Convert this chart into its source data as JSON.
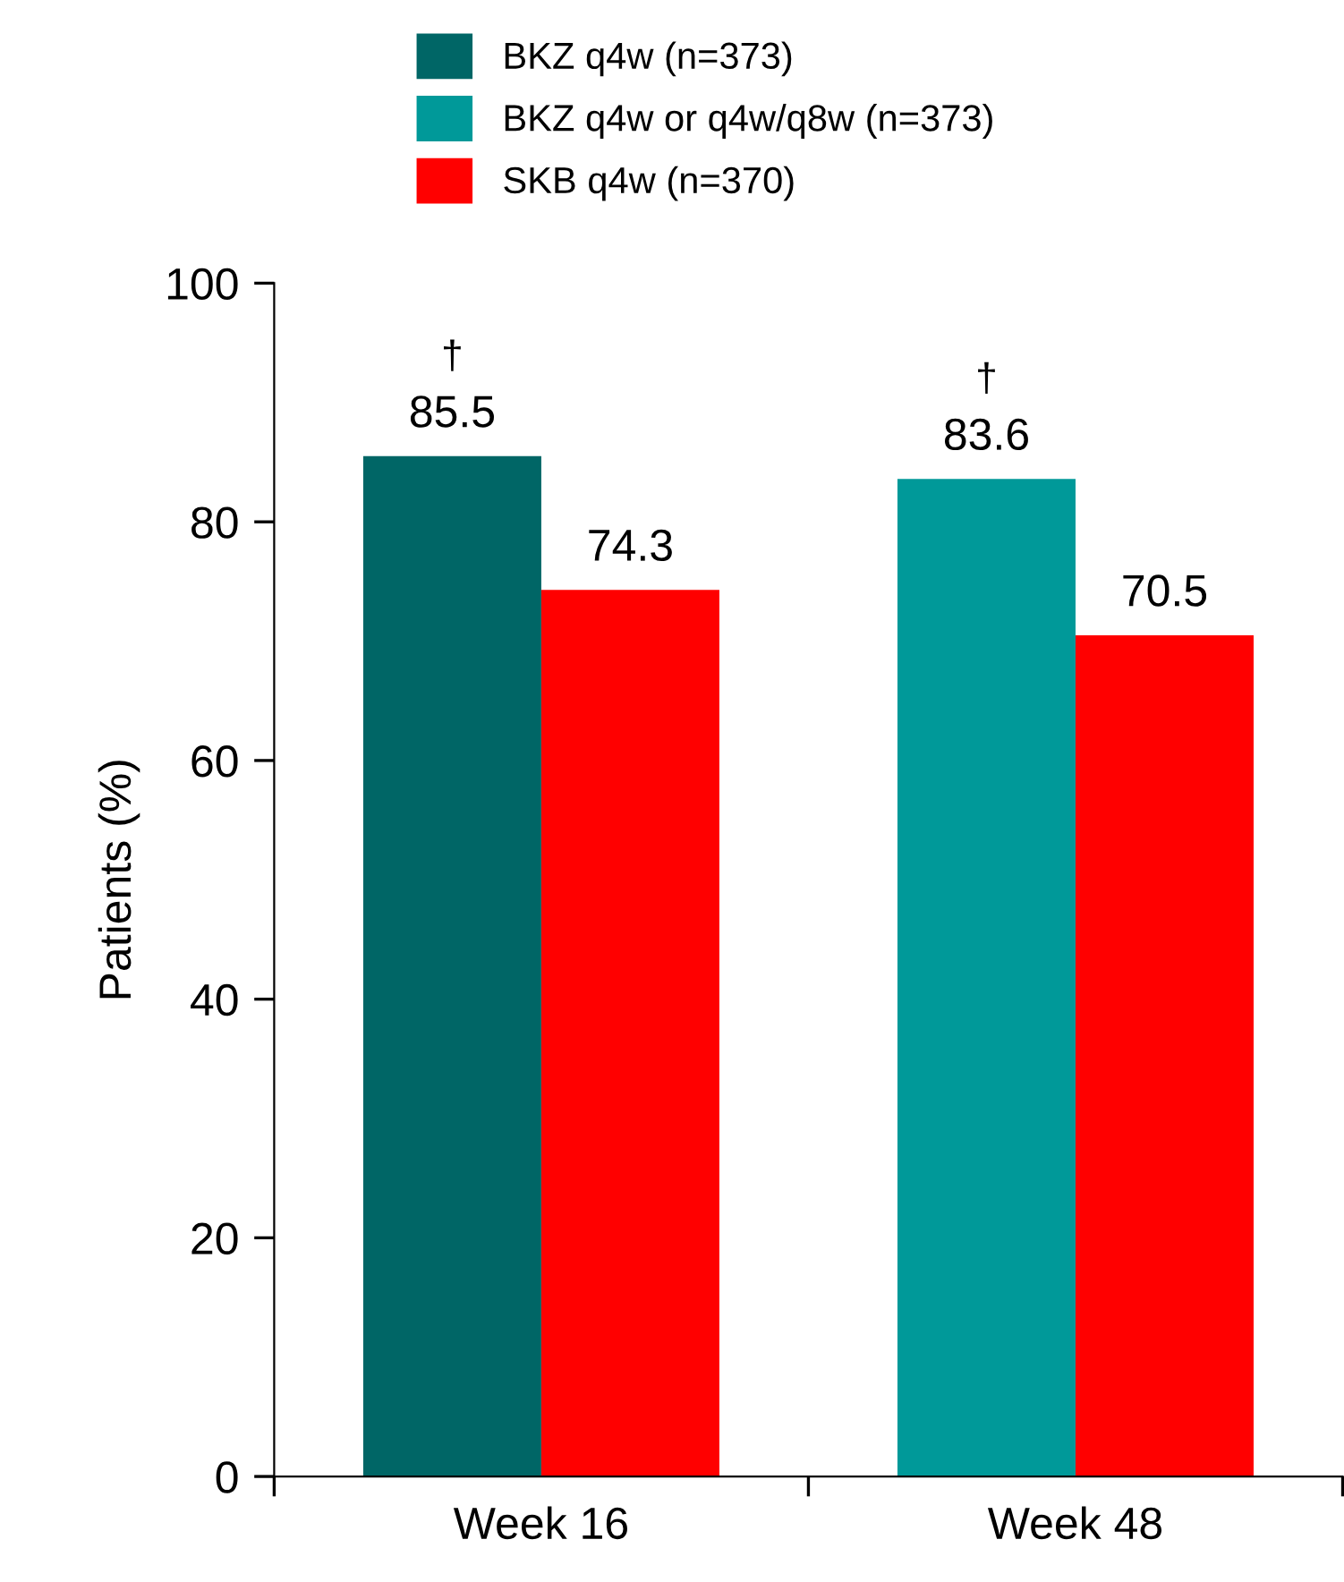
{
  "chart_data": {
    "type": "bar",
    "categories": [
      "Week 16",
      "Week 48"
    ],
    "ylabel": "Patients (%)",
    "series": [
      {
        "name": "BKZ q4w (n=373)",
        "color": "#006666",
        "values": [
          85.5,
          null
        ]
      },
      {
        "name": "BKZ q4w or q4w/q8w (n=373)",
        "color": "#009999",
        "values": [
          null,
          83.6
        ]
      },
      {
        "name": "SKB q4w (n=370)",
        "color": "#ff0000",
        "values": [
          74.3,
          70.5
        ]
      }
    ],
    "ylim": [
      0,
      100
    ],
    "yticks": [
      0,
      20,
      40,
      60,
      80,
      100
    ],
    "data_labels": true,
    "legend": "top",
    "grid": false,
    "annotations": [
      {
        "text": "†",
        "x": "Week 16",
        "y": 85.5
      },
      {
        "text": "†",
        "x": "Week 48",
        "y": 83.6
      }
    ]
  }
}
